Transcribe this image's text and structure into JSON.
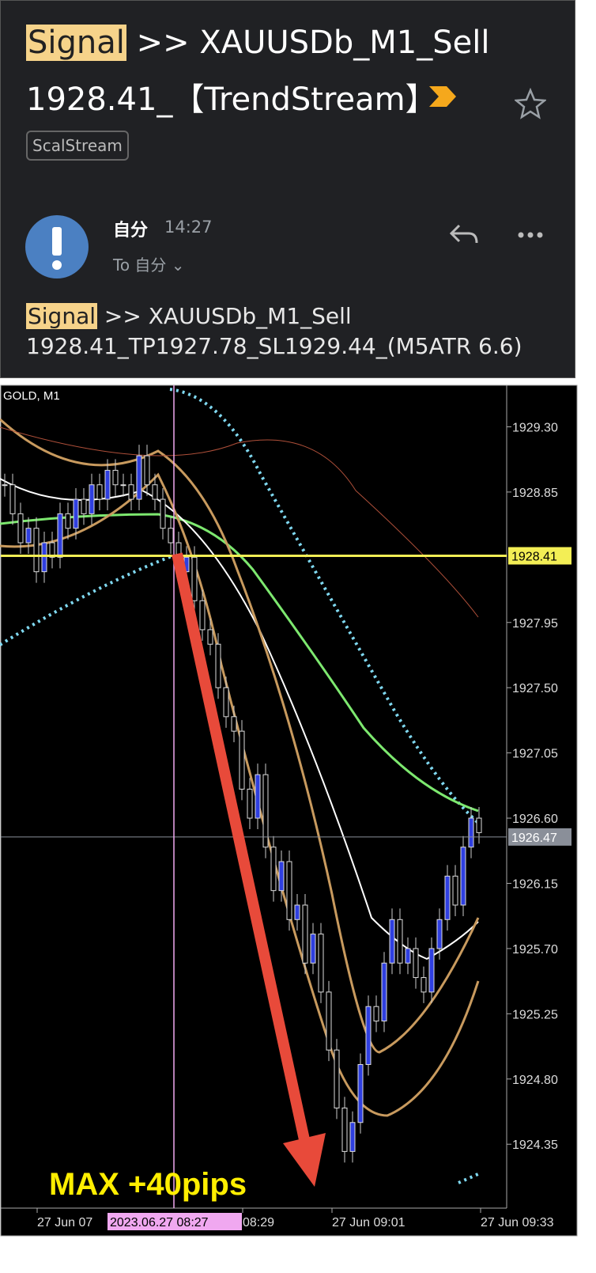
{
  "email": {
    "subject": {
      "highlight": "Signal",
      "line1": ">> XAUUSDb_M1_Sell",
      "line2": "1928.41_【TrendStream】"
    },
    "label": "ScalStream",
    "sender": "自分",
    "time": "14:27",
    "to": "To 自分",
    "body": {
      "highlight": "Signal",
      "line1": ">> XAUUSDb_M1_Sell",
      "line2": "1928.41_TP1927.78_SL1929.44_(M5ATR 6.6)"
    }
  },
  "chart": {
    "type": "candlestick",
    "symbol": "GOLD, M1",
    "ylim": [
      1923.92,
      1929.57
    ],
    "yticks": [
      {
        "value": 1929.3,
        "label": "1929.30"
      },
      1928.85,
      1927.95,
      {
        "value": 1927.5,
        "label": "1927.50"
      },
      1927.05,
      {
        "value": 1926.6,
        "label": "1926.60"
      },
      1926.15,
      {
        "value": 1925.7,
        "label": "1925.70"
      },
      1925.25,
      {
        "value": 1924.8,
        "label": "1924.80"
      },
      1924.35
    ],
    "signal_level": 1928.41,
    "current_price": 1926.47,
    "time_labels": [
      "27 Jun 07",
      "08:29",
      "27 Jun 09:01",
      "27 Jun 09:33"
    ],
    "cursor_time": "2023.06.27 08:27",
    "annotation": "MAX +40pips",
    "closes": [
      1928.9,
      1928.7,
      1928.5,
      1928.6,
      1928.3,
      1928.5,
      1928.4,
      1928.7,
      1928.6,
      1928.8,
      1928.7,
      1928.9,
      1928.8,
      1929.0,
      1928.9,
      1928.9,
      1928.8,
      1929.1,
      1928.9,
      1928.8,
      1928.6,
      1928.5,
      1928.3,
      1928.4,
      1928.1,
      1927.9,
      1927.8,
      1927.5,
      1927.3,
      1927.2,
      1926.8,
      1926.6,
      1926.9,
      1926.4,
      1926.1,
      1926.3,
      1925.9,
      1926.0,
      1925.6,
      1925.8,
      1925.4,
      1925.0,
      1924.6,
      1924.3,
      1924.5,
      1924.9,
      1925.3,
      1925.2,
      1925.6,
      1925.9,
      1925.6,
      1925.7,
      1925.5,
      1925.4,
      1925.7,
      1925.9,
      1926.2,
      1926.0,
      1926.4,
      1926.6,
      1926.5
    ]
  }
}
